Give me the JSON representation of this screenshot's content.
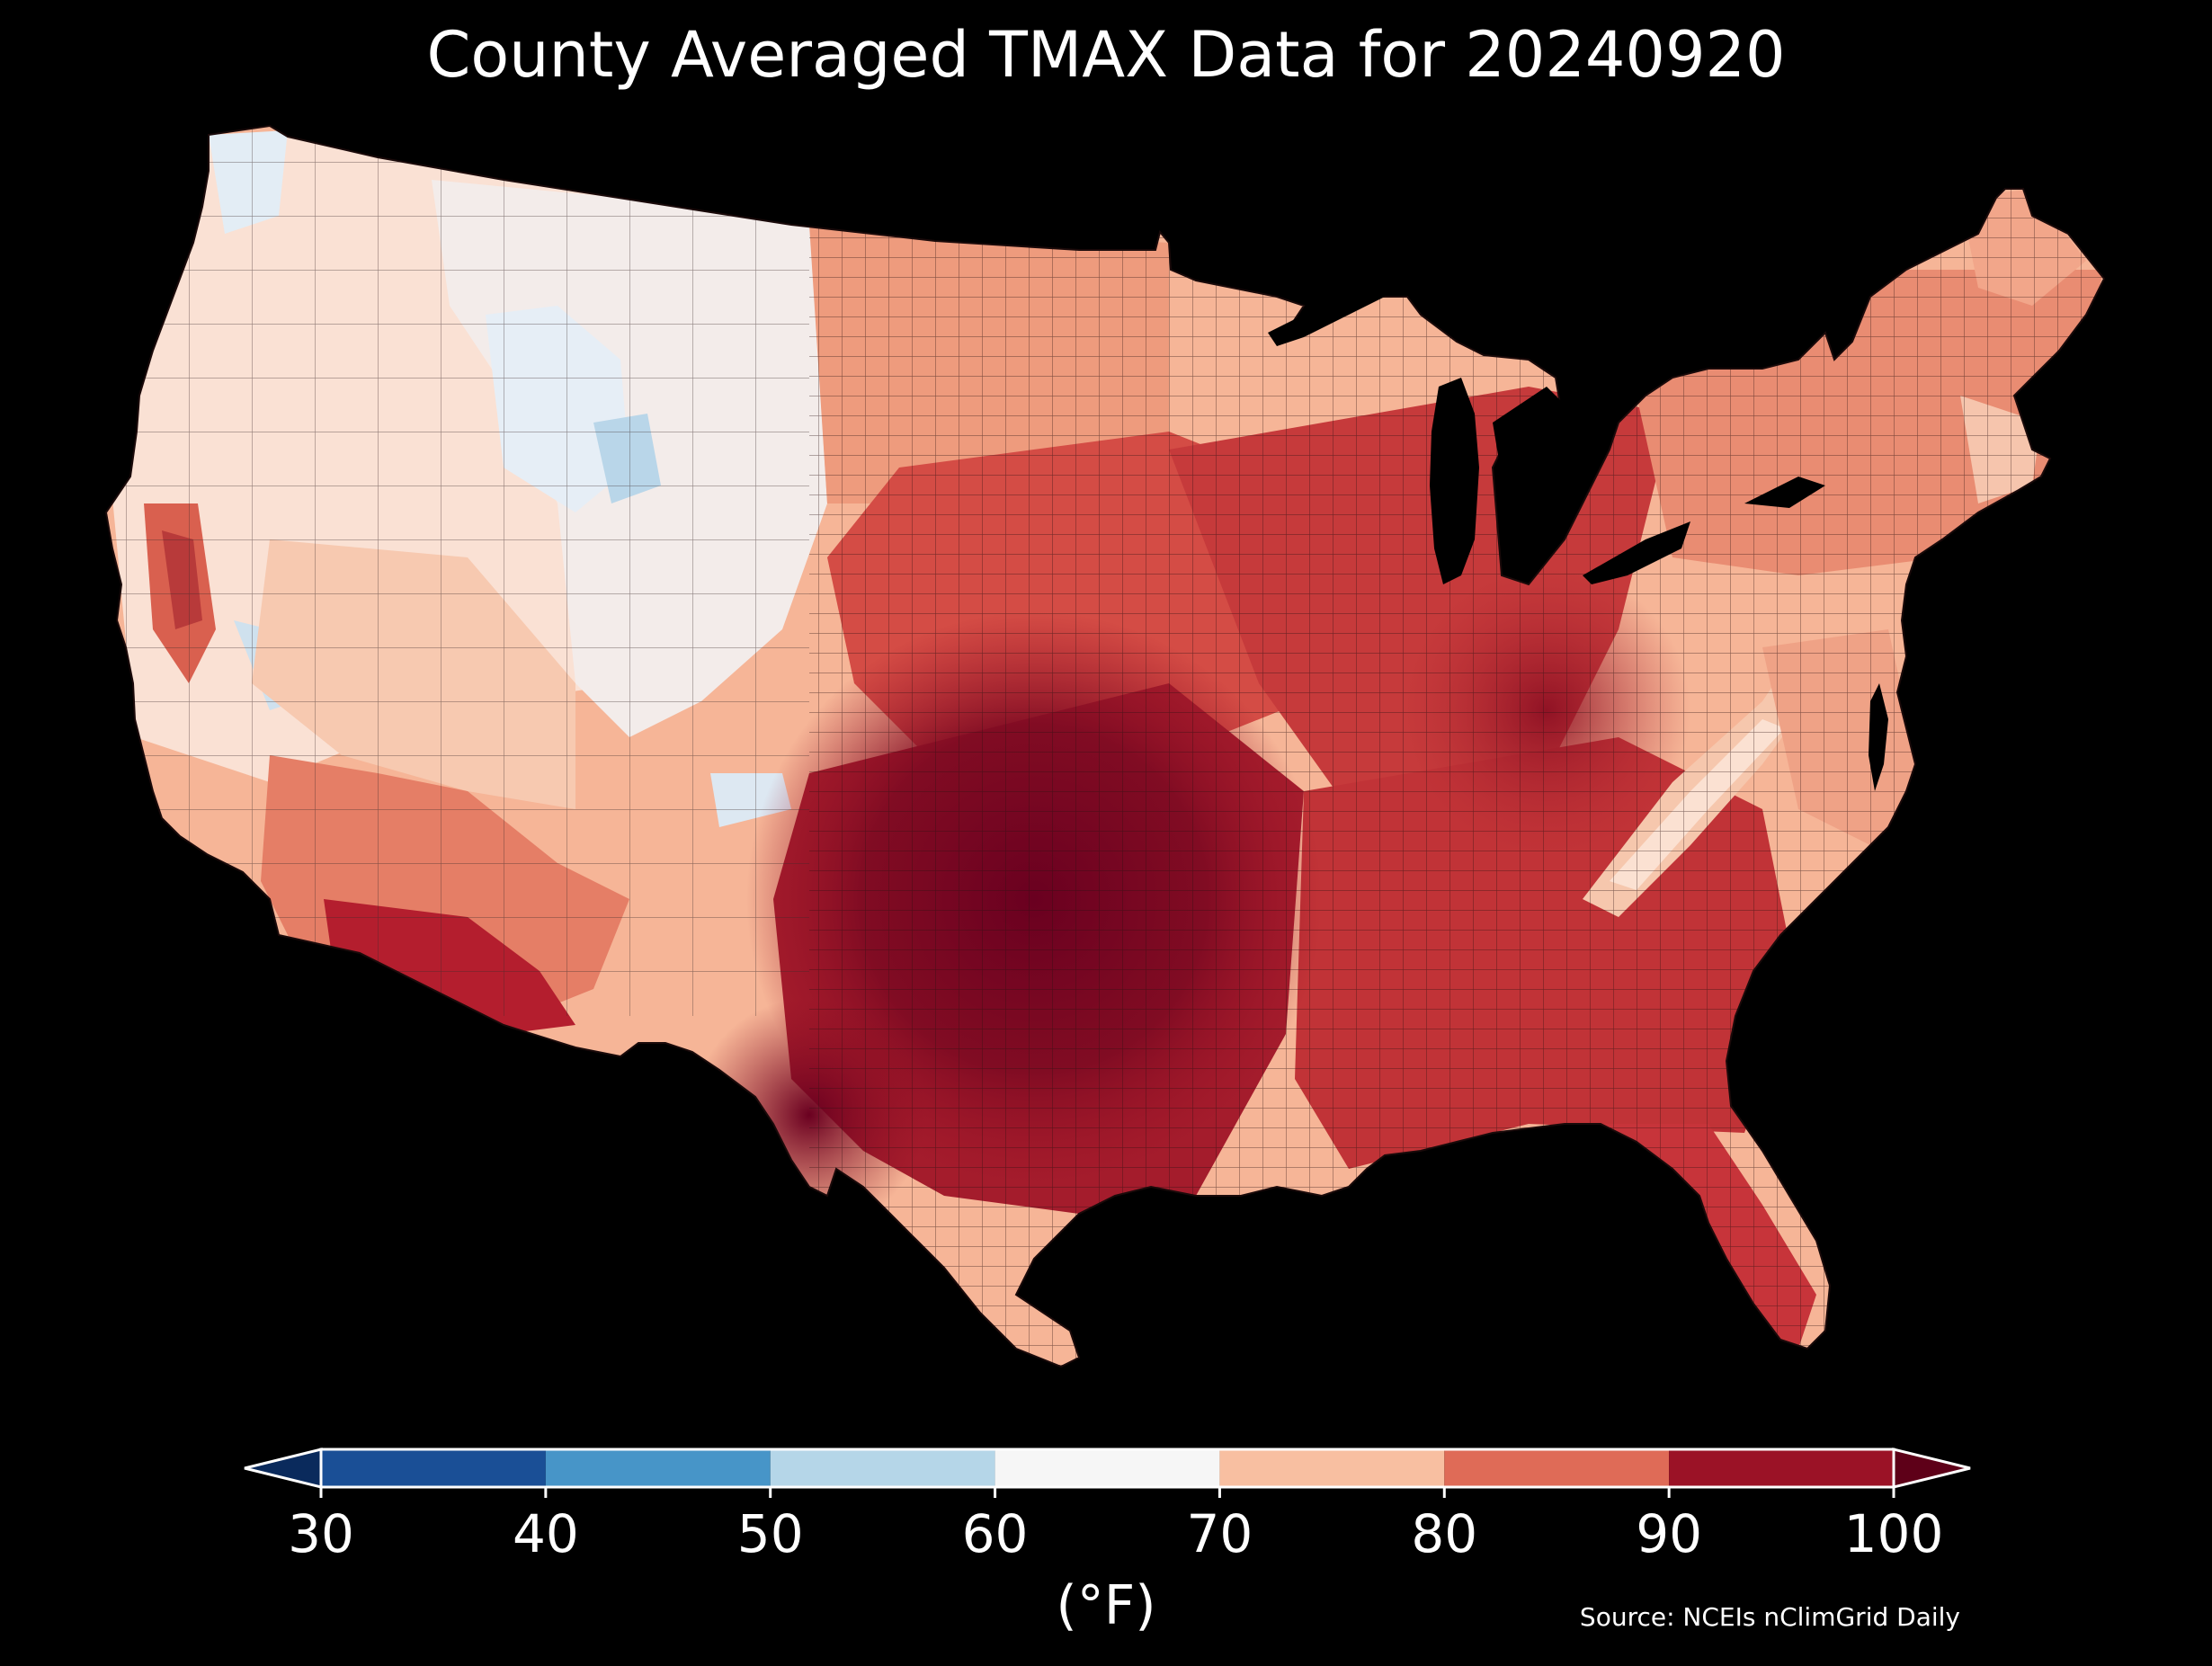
{
  "title": "County Averaged TMAX Data for 20240920",
  "colorbar": {
    "ticks": [
      "30",
      "40",
      "50",
      "60",
      "70",
      "80",
      "90",
      "100"
    ],
    "unit_label": "(°F)",
    "bins": [
      {
        "min": 30,
        "max": 40,
        "color": "#1a4f96"
      },
      {
        "min": 40,
        "max": 50,
        "color": "#4795c8"
      },
      {
        "min": 50,
        "max": 60,
        "color": "#b5d6e8"
      },
      {
        "min": 60,
        "max": 70,
        "color": "#f6f6f6"
      },
      {
        "min": 70,
        "max": 80,
        "color": "#f8bfa1"
      },
      {
        "min": 80,
        "max": 90,
        "color": "#df6b57"
      },
      {
        "min": 90,
        "max": 100,
        "color": "#9b1226"
      }
    ],
    "under_color": "#0a2a5c",
    "over_color": "#5e0018",
    "range": [
      30,
      100
    ],
    "extend": "both"
  },
  "source": "Source: NCEIs nClimGrid Daily",
  "map": {
    "region": "Contiguous United States",
    "variable": "TMAX",
    "units": "°F",
    "boundaries": "counties"
  },
  "colors": {
    "background": "#000000",
    "text": "#ffffff",
    "county_border": "#2a1010"
  }
}
